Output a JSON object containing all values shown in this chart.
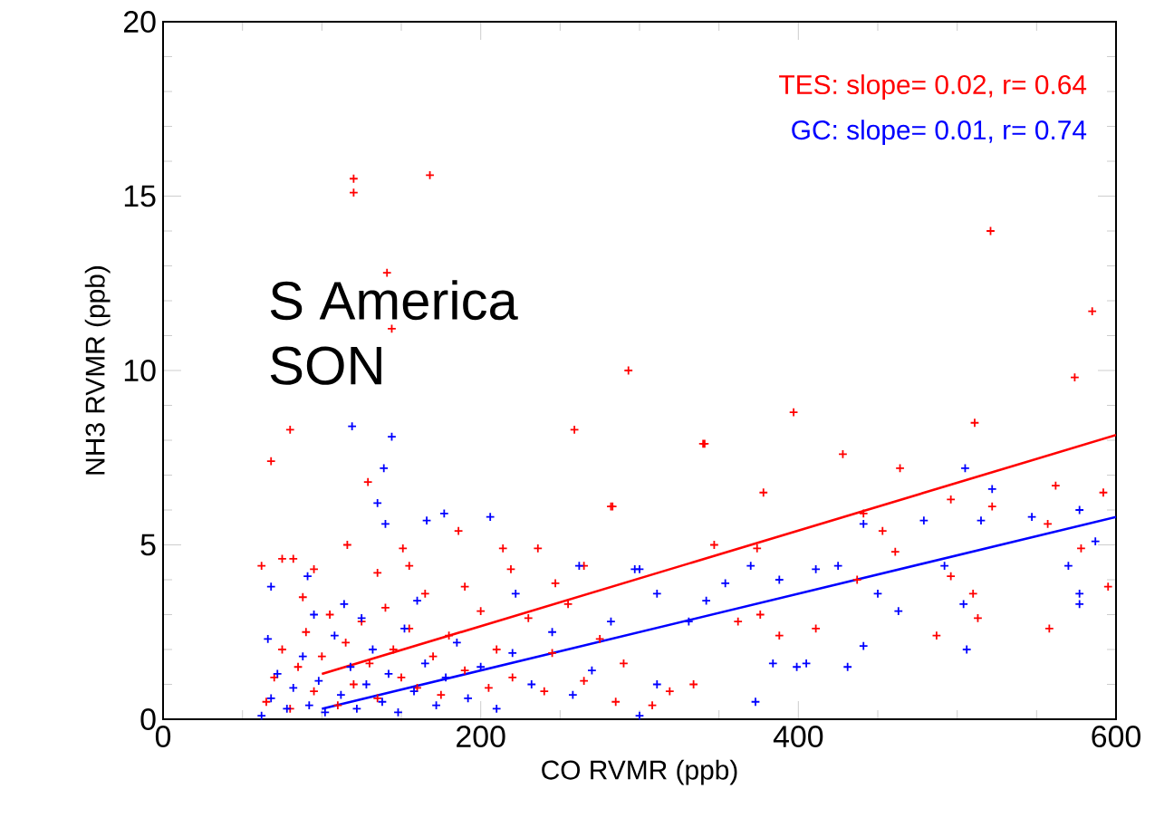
{
  "chart_data": {
    "type": "scatter",
    "xlabel": "CO RVMR (ppb)",
    "ylabel": "NH3 RVMR (ppb)",
    "xlim": [
      0,
      600
    ],
    "ylim": [
      0,
      20
    ],
    "xticks": [
      0,
      200,
      400,
      600
    ],
    "yticks": [
      0,
      5,
      10,
      15,
      20
    ],
    "legend": false,
    "grid": false,
    "annotations": [
      "S America",
      "SON"
    ],
    "series": [
      {
        "name": "TES: slope= 0.02, r= 0.64",
        "marker": "cross",
        "color": "#ff0000",
        "x": [
          521,
          585,
          574,
          511,
          397,
          341,
          428,
          378,
          282,
          347,
          374,
          441,
          464,
          496,
          522,
          562,
          592,
          557,
          578,
          595,
          453,
          461,
          496,
          510,
          513,
          487,
          558,
          437,
          411,
          388,
          362,
          334,
          319,
          308,
          376,
          62,
          82,
          95,
          116,
          151,
          155,
          186,
          214,
          236,
          219,
          247,
          283,
          340,
          259,
          293,
          80,
          68,
          129,
          144,
          141,
          120,
          120,
          168,
          65,
          70,
          75,
          80,
          85,
          90,
          95,
          100,
          105,
          110,
          115,
          120,
          125,
          130,
          135,
          140,
          145,
          150,
          155,
          160,
          165,
          170,
          175,
          180,
          190,
          200,
          205,
          210,
          220,
          230,
          240,
          245,
          255,
          265,
          275,
          285,
          290,
          265,
          190,
          135,
          88,
          75
        ],
        "values": [
          14.0,
          11.7,
          9.8,
          8.5,
          8.8,
          7.9,
          7.6,
          6.5,
          6.1,
          5.0,
          4.9,
          5.9,
          7.2,
          6.3,
          6.1,
          6.7,
          6.5,
          5.6,
          4.9,
          3.8,
          5.4,
          4.8,
          4.1,
          3.6,
          2.9,
          2.4,
          2.6,
          4.0,
          2.6,
          2.4,
          2.8,
          1.0,
          0.8,
          0.4,
          3.0,
          4.4,
          4.6,
          4.3,
          5.0,
          4.9,
          4.4,
          5.4,
          4.9,
          4.9,
          4.3,
          3.9,
          6.1,
          7.9,
          8.3,
          10.0,
          8.3,
          7.4,
          6.8,
          11.2,
          12.8,
          15.5,
          15.1,
          15.6,
          0.5,
          1.2,
          2.0,
          0.3,
          1.5,
          2.5,
          0.8,
          1.8,
          3.0,
          0.4,
          2.2,
          1.0,
          2.8,
          1.6,
          0.6,
          3.2,
          2.0,
          1.2,
          2.6,
          0.9,
          3.6,
          1.8,
          0.7,
          2.4,
          1.4,
          3.1,
          0.9,
          2.0,
          1.2,
          2.9,
          0.8,
          1.9,
          3.3,
          1.1,
          2.3,
          0.5,
          1.6,
          4.4,
          3.8,
          4.2,
          3.5,
          4.6
        ]
      },
      {
        "name": "GC:   slope= 0.01, r= 0.74",
        "marker": "cross",
        "color": "#0000ff",
        "x": [
          119,
          144,
          139,
          135,
          140,
          166,
          177,
          206,
          68,
          91,
          114,
          262,
          300,
          311,
          66,
          505,
          522,
          441,
          479,
          515,
          547,
          577,
          587,
          570,
          577,
          577,
          492,
          463,
          450,
          425,
          411,
          388,
          370,
          354,
          331,
          342,
          441,
          431,
          405,
          384,
          506,
          504,
          373,
          399,
          311,
          300,
          297,
          62,
          68,
          72,
          78,
          82,
          88,
          92,
          98,
          102,
          108,
          112,
          118,
          122,
          128,
          132,
          138,
          142,
          148,
          152,
          158,
          165,
          172,
          178,
          185,
          192,
          200,
          210,
          220,
          232,
          245,
          258,
          270,
          282,
          95,
          125,
          160,
          222
        ],
        "values": [
          8.4,
          8.1,
          7.2,
          6.2,
          5.6,
          5.7,
          5.9,
          5.8,
          3.8,
          4.1,
          3.3,
          4.4,
          4.3,
          3.6,
          2.3,
          7.2,
          6.6,
          5.6,
          5.7,
          5.7,
          5.8,
          6.0,
          5.1,
          4.4,
          3.6,
          3.3,
          4.4,
          3.1,
          3.6,
          4.4,
          4.3,
          4.0,
          4.4,
          3.9,
          2.8,
          3.4,
          2.1,
          1.5,
          1.6,
          1.6,
          2.0,
          3.3,
          0.5,
          1.5,
          1.0,
          0.1,
          4.3,
          0.1,
          0.6,
          1.3,
          0.3,
          0.9,
          1.8,
          0.4,
          1.1,
          0.2,
          2.4,
          0.7,
          1.5,
          0.3,
          1.0,
          2.0,
          0.5,
          1.3,
          0.2,
          2.6,
          0.8,
          1.6,
          0.4,
          1.2,
          2.2,
          0.6,
          1.5,
          0.3,
          1.9,
          1.0,
          2.5,
          0.7,
          1.4,
          2.8,
          3.0,
          2.9,
          3.4,
          3.6
        ]
      },
      {
        "type": "line",
        "marker": "none",
        "color": "#ff0000",
        "x": [
          100,
          600
        ],
        "values": [
          1.3,
          8.15
        ]
      },
      {
        "type": "line",
        "marker": "none",
        "color": "#0000ff",
        "x": [
          100,
          600
        ],
        "values": [
          0.3,
          5.8
        ]
      }
    ]
  }
}
